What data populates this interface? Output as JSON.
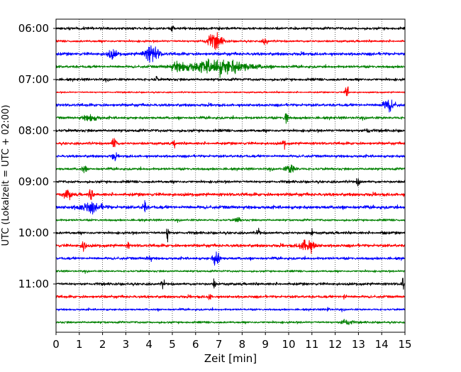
{
  "chart_data": {
    "type": "line",
    "title": "",
    "xlabel": "Zeit  [min]",
    "ylabel": "UTC (Lokalzeit = UTC + 02:00)",
    "xlim": [
      0,
      15
    ],
    "x_ticks": [
      "0",
      "1",
      "2",
      "3",
      "4",
      "5",
      "6",
      "7",
      "8",
      "9",
      "10",
      "11",
      "12",
      "13",
      "14",
      "15"
    ],
    "y_tick_labels": [
      "06:00",
      "07:00",
      "08:00",
      "09:00",
      "10:00",
      "11:00"
    ],
    "y_tick_trace_index": [
      0,
      4,
      8,
      12,
      16,
      20
    ],
    "grid": "vertical dotted at each minute",
    "colors": [
      "#000000",
      "#ff0000",
      "#0000ff",
      "#008000"
    ],
    "traces": [
      {
        "utc": "06:00",
        "color": "#000000",
        "noise": 1.6,
        "events": [
          [
            5.0,
            5,
            0.06
          ]
        ]
      },
      {
        "utc": "06:15",
        "color": "#ff0000",
        "noise": 1.3,
        "events": [
          [
            6.8,
            9,
            0.35
          ],
          [
            9.0,
            5,
            0.1
          ]
        ]
      },
      {
        "utc": "06:30",
        "color": "#0000ff",
        "noise": 1.8,
        "events": [
          [
            2.4,
            5,
            0.2
          ],
          [
            4.1,
            11,
            0.3
          ]
        ]
      },
      {
        "utc": "06:45",
        "color": "#008000",
        "noise": 1.6,
        "events": [
          [
            7.0,
            9,
            1.3
          ],
          [
            5.3,
            4,
            0.4
          ]
        ]
      },
      {
        "utc": "07:00",
        "color": "#000000",
        "noise": 1.6,
        "events": [
          [
            4.3,
            5,
            0.05
          ]
        ]
      },
      {
        "utc": "07:15",
        "color": "#ff0000",
        "noise": 0.9,
        "events": [
          [
            12.5,
            13,
            0.06
          ]
        ]
      },
      {
        "utc": "07:30",
        "color": "#0000ff",
        "noise": 1.7,
        "events": [
          [
            14.3,
            7,
            0.25
          ]
        ]
      },
      {
        "utc": "07:45",
        "color": "#008000",
        "noise": 1.6,
        "events": [
          [
            9.9,
            11,
            0.07
          ],
          [
            1.5,
            4,
            0.3
          ]
        ]
      },
      {
        "utc": "08:00",
        "color": "#000000",
        "noise": 1.7,
        "events": [
          [
            13.4,
            4,
            0.1
          ]
        ]
      },
      {
        "utc": "08:15",
        "color": "#ff0000",
        "noise": 1.6,
        "events": [
          [
            2.5,
            8,
            0.1
          ],
          [
            5.1,
            5,
            0.05
          ],
          [
            9.8,
            5,
            0.06
          ]
        ]
      },
      {
        "utc": "08:30",
        "color": "#0000ff",
        "noise": 1.6,
        "events": [
          [
            2.5,
            5,
            0.08
          ]
        ]
      },
      {
        "utc": "08:45",
        "color": "#008000",
        "noise": 1.5,
        "events": [
          [
            10.1,
            6,
            0.2
          ],
          [
            1.2,
            4,
            0.1
          ]
        ]
      },
      {
        "utc": "09:00",
        "color": "#000000",
        "noise": 1.6,
        "events": [
          [
            13.0,
            4,
            0.1
          ]
        ]
      },
      {
        "utc": "09:15",
        "color": "#ff0000",
        "noise": 1.9,
        "events": [
          [
            0.5,
            6,
            0.15
          ],
          [
            1.5,
            9,
            0.07
          ]
        ]
      },
      {
        "utc": "09:30",
        "color": "#0000ff",
        "noise": 2.0,
        "events": [
          [
            1.5,
            5,
            0.5
          ],
          [
            3.8,
            9,
            0.08
          ]
        ]
      },
      {
        "utc": "09:45",
        "color": "#008000",
        "noise": 1.3,
        "events": [
          [
            7.8,
            4,
            0.1
          ]
        ]
      },
      {
        "utc": "10:00",
        "color": "#000000",
        "noise": 1.6,
        "events": [
          [
            4.8,
            10,
            0.07
          ],
          [
            8.7,
            6,
            0.06
          ],
          [
            11.0,
            5,
            0.05
          ],
          [
            14.1,
            5,
            0.05
          ]
        ]
      },
      {
        "utc": "10:15",
        "color": "#ff0000",
        "noise": 1.8,
        "events": [
          [
            1.2,
            8,
            0.08
          ],
          [
            10.8,
            8,
            0.3
          ],
          [
            3.1,
            4,
            0.05
          ]
        ]
      },
      {
        "utc": "10:30",
        "color": "#0000ff",
        "noise": 1.6,
        "events": [
          [
            6.9,
            9,
            0.15
          ],
          [
            4.0,
            4,
            0.1
          ]
        ]
      },
      {
        "utc": "10:45",
        "color": "#008000",
        "noise": 1.2,
        "events": []
      },
      {
        "utc": "11:00",
        "color": "#000000",
        "noise": 1.6,
        "events": [
          [
            4.6,
            6,
            0.06
          ],
          [
            6.8,
            5,
            0.06
          ],
          [
            14.9,
            9,
            0.05
          ]
        ]
      },
      {
        "utc": "11:15",
        "color": "#ff0000",
        "noise": 1.6,
        "events": [
          [
            6.6,
            5,
            0.06
          ],
          [
            12.4,
            4,
            0.06
          ]
        ]
      },
      {
        "utc": "11:30",
        "color": "#0000ff",
        "noise": 1.2,
        "events": [
          [
            11.7,
            6,
            0.05
          ]
        ]
      },
      {
        "utc": "11:45",
        "color": "#008000",
        "noise": 1.3,
        "events": [
          [
            12.5,
            5,
            0.2
          ]
        ]
      }
    ]
  }
}
